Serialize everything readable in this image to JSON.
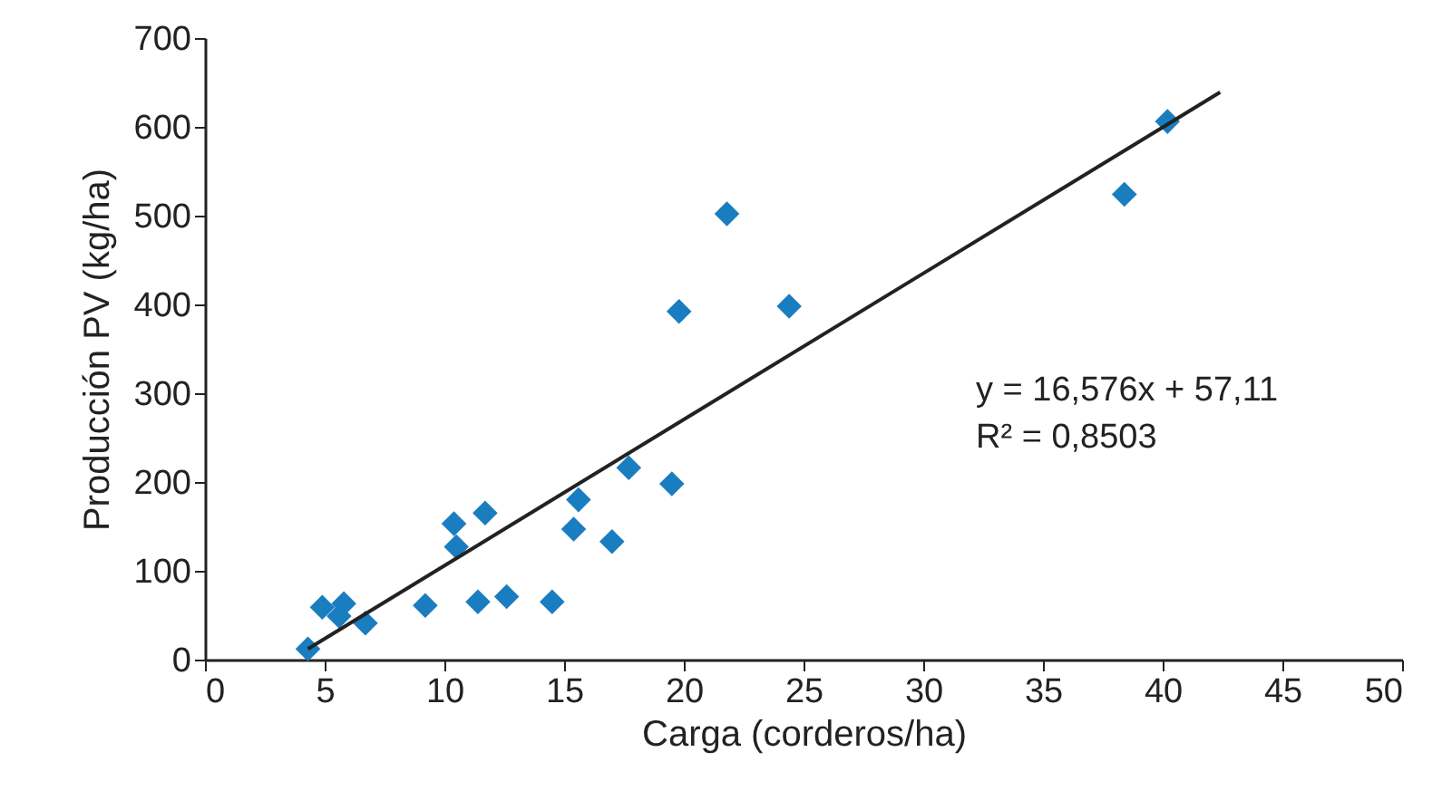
{
  "chart_data": {
    "type": "scatter",
    "xlabel": "Carga  (corderos/ha)",
    "ylabel": "Producción PV (kg/ha)",
    "xlim": [
      0,
      50
    ],
    "xticks": [
      0,
      5,
      10,
      15,
      20,
      25,
      30,
      35,
      40,
      45,
      50
    ],
    "ylim": [
      0,
      700
    ],
    "yticks": [
      0,
      100,
      200,
      300,
      400,
      500,
      600,
      700
    ],
    "grid": false,
    "marker": "diamond",
    "annotations": [
      "y = 16,576x + 57,11",
      "R² = 0,8503"
    ],
    "series": [
      {
        "color": "#1a7dc0",
        "x": [
          4.3,
          4.9,
          5.8,
          5.6,
          6.7,
          9.2,
          10.4,
          10.5,
          11.7,
          11.4,
          12.6,
          14.5,
          15.4,
          15.6,
          17.0,
          17.7,
          19.5,
          19.8,
          21.8,
          24.4,
          38.4,
          40.2
        ],
        "values": [
          12,
          59,
          63,
          49,
          41,
          61,
          153,
          127,
          165,
          65,
          71,
          65,
          147,
          180,
          133,
          216,
          198,
          392,
          502,
          398,
          524,
          606
        ]
      },
      {
        "type": "line",
        "color": "#222222",
        "marker": "none",
        "x": [
          4.3,
          42.4
        ],
        "values": [
          12,
          639
        ]
      }
    ]
  }
}
